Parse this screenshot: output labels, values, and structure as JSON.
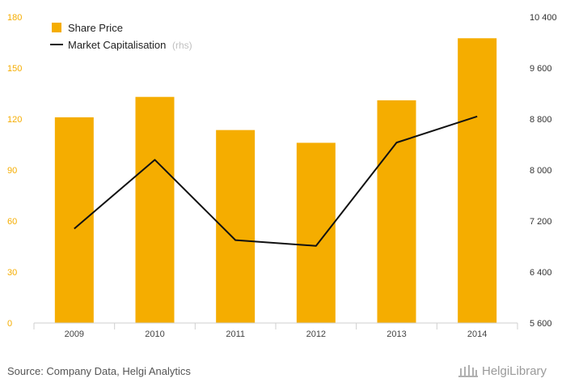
{
  "chart_data": {
    "type": "bar",
    "categories": [
      "2009",
      "2010",
      "2011",
      "2012",
      "2013",
      "2014"
    ],
    "series": [
      {
        "name": "Share Price",
        "type": "bar",
        "axis": "left",
        "color": "#f5ad00",
        "values": [
          121,
          133,
          113.5,
          106,
          131,
          167.5
        ]
      },
      {
        "name": "Market Capitalisation",
        "name_suffix": "(rhs)",
        "type": "line",
        "axis": "right",
        "color": "#111111",
        "values": [
          7080,
          8160,
          6900,
          6810,
          8430,
          8840
        ]
      }
    ],
    "y_left": {
      "min": 0,
      "max": 180,
      "ticks": [
        "0",
        "30",
        "60",
        "90",
        "120",
        "150",
        "180"
      ]
    },
    "y_right": {
      "min": 5600,
      "max": 10400,
      "ticks": [
        "5 600",
        "6 400",
        "7 200",
        "8 000",
        "8 800",
        "9 600",
        "10 400"
      ]
    },
    "legend_position": "top-left",
    "grid": false
  },
  "footer": {
    "source": "Source: Company Data, Helgi Analytics",
    "logo_text": "HelgiLibrary"
  }
}
